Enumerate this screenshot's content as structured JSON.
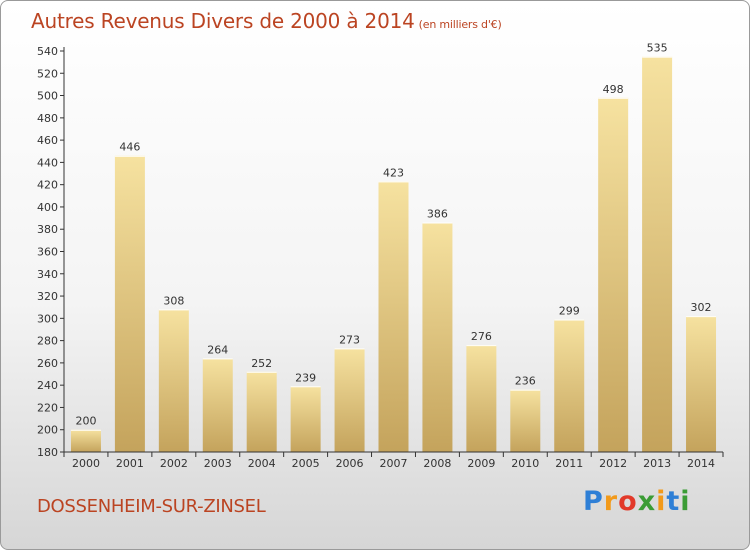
{
  "title": "Autres Revenus Divers de 2000 à 2014",
  "unit": "(en milliers d'€)",
  "place": "DOSSENHEIM-SUR-ZINSEL",
  "logo": {
    "letters": [
      "P",
      "r",
      "o",
      "x",
      "i",
      "t",
      "i"
    ],
    "colors": [
      "#2e7fd6",
      "#f29a1a",
      "#e23a2a",
      "#3b9c35",
      "#f29a1a",
      "#2e7fd6",
      "#3b9c35"
    ]
  },
  "colors": {
    "title": "#bb4422",
    "bar_light": "#f6e2a0",
    "bar_dark": "#c4a35c"
  },
  "chart_data": {
    "type": "bar",
    "title": "Autres Revenus Divers de 2000 à 2014",
    "xlabel": "",
    "ylabel": "",
    "categories": [
      "2000",
      "2001",
      "2002",
      "2003",
      "2004",
      "2005",
      "2006",
      "2007",
      "2008",
      "2009",
      "2010",
      "2011",
      "2012",
      "2013",
      "2014"
    ],
    "values": [
      200,
      446,
      308,
      264,
      252,
      239,
      273,
      423,
      386,
      276,
      236,
      299,
      498,
      535,
      302
    ],
    "ylim": [
      180,
      540
    ],
    "yticks": [
      180,
      200,
      220,
      240,
      260,
      280,
      300,
      320,
      340,
      360,
      380,
      400,
      420,
      440,
      460,
      480,
      500,
      520,
      540
    ],
    "grid": false
  }
}
